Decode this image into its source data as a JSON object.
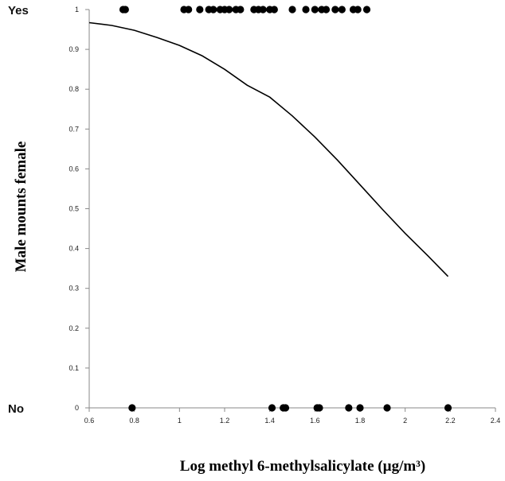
{
  "chart_data": {
    "type": "scatter",
    "title": "",
    "xlabel": "Log methyl 6-methylsalicylate (µg/m³)",
    "ylabel": "Male mounts female",
    "xlim": [
      0.6,
      2.4
    ],
    "ylim": [
      0,
      1
    ],
    "x_ticks": [
      "0.6",
      "0.8",
      "1",
      "1.2",
      "1.4",
      "1.6",
      "1.8",
      "2",
      "2.2",
      "2.4"
    ],
    "y_ticks": [
      "0",
      "0.1",
      "0.2",
      "0.3",
      "0.4",
      "0.5",
      "0.6",
      "0.7",
      "0.8",
      "0.9",
      "1"
    ],
    "y_category_labels": [
      {
        "label": "Yes",
        "y": 1
      },
      {
        "label": "No",
        "y": 0
      }
    ],
    "grid": false,
    "legend": "none",
    "point_color": "#000000",
    "line_color": "#000000",
    "series": [
      {
        "kind": "points",
        "x": [
          0.75,
          0.76,
          1.02,
          1.04,
          1.09,
          1.13,
          1.15,
          1.18,
          1.2,
          1.22,
          1.25,
          1.27,
          1.33,
          1.35,
          1.37,
          1.4,
          1.42,
          1.5,
          1.56,
          1.6,
          1.63,
          1.65,
          1.69,
          1.72,
          1.77,
          1.79,
          1.83,
          0.79,
          1.41,
          1.46,
          1.47,
          1.61,
          1.62,
          1.75,
          1.8,
          1.92,
          2.19
        ],
        "y": [
          1,
          1,
          1,
          1,
          1,
          1,
          1,
          1,
          1,
          1,
          1,
          1,
          1,
          1,
          1,
          1,
          1,
          1,
          1,
          1,
          1,
          1,
          1,
          1,
          1,
          1,
          1,
          0,
          0,
          0,
          0,
          0,
          0,
          0,
          0,
          0,
          0
        ]
      },
      {
        "kind": "line",
        "x": [
          0.6,
          0.7,
          0.8,
          0.9,
          1.0,
          1.1,
          1.2,
          1.3,
          1.4,
          1.5,
          1.6,
          1.7,
          1.8,
          1.9,
          2.0,
          2.1,
          2.19
        ],
        "y": [
          0.967,
          0.96,
          0.948,
          0.93,
          0.91,
          0.884,
          0.85,
          0.81,
          0.78,
          0.733,
          0.68,
          0.622,
          0.56,
          0.498,
          0.438,
          0.382,
          0.33
        ]
      }
    ]
  }
}
